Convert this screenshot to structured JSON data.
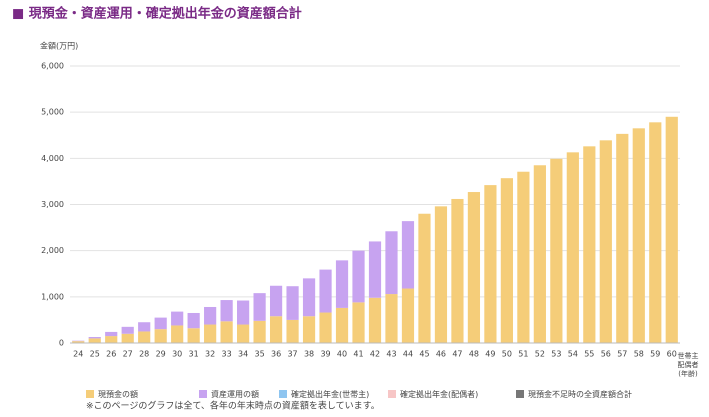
{
  "chart_data": {
    "type": "bar",
    "stacked": true,
    "title": "■ 現預金・資産運用・確定拠出年金の資産額合計",
    "ylabel": "金額(万円)",
    "xlabel": [
      "世帯主",
      "配偶者",
      "(年齢)"
    ],
    "footnote": "※このページのグラフは全て、各年の年末時点の資産額を表しています。",
    "categories": [
      "24",
      "25",
      "26",
      "27",
      "28",
      "29",
      "30",
      "31",
      "32",
      "33",
      "34",
      "35",
      "36",
      "37",
      "38",
      "39",
      "40",
      "41",
      "42",
      "43",
      "44",
      "45",
      "46",
      "47",
      "48",
      "49",
      "50",
      "51",
      "52",
      "53",
      "54",
      "55",
      "56",
      "57",
      "58",
      "59",
      "60"
    ],
    "series": [
      {
        "name": "現預金の額",
        "color": "#f5cd79",
        "values": [
          40,
          100,
          150,
          200,
          250,
          300,
          380,
          320,
          400,
          470,
          400,
          480,
          580,
          500,
          580,
          660,
          760,
          880,
          980,
          1060,
          1180,
          2800,
          2960,
          3120,
          3270,
          3420,
          3570,
          3710,
          3850,
          3990,
          4130,
          4260,
          4390,
          4530,
          4650,
          4780,
          4900
        ]
      },
      {
        "name": "資産運用の額",
        "color": "#c7a3f0",
        "values": [
          10,
          30,
          90,
          150,
          200,
          250,
          300,
          330,
          380,
          460,
          520,
          600,
          660,
          730,
          820,
          930,
          1030,
          1120,
          1220,
          1360,
          1460,
          0,
          0,
          0,
          0,
          0,
          0,
          0,
          0,
          0,
          0,
          0,
          0,
          0,
          0,
          0,
          0
        ]
      },
      {
        "name": "確定拠出年金(世帯主)",
        "color": "#8ec5f0",
        "values": [
          0,
          0,
          0,
          0,
          0,
          0,
          0,
          0,
          0,
          0,
          0,
          0,
          0,
          0,
          0,
          0,
          0,
          0,
          0,
          0,
          0,
          0,
          0,
          0,
          0,
          0,
          0,
          0,
          0,
          0,
          0,
          0,
          0,
          0,
          0,
          0,
          0
        ]
      },
      {
        "name": "確定拠出年金(配偶者)",
        "color": "#f7c6c6",
        "values": [
          0,
          0,
          0,
          0,
          0,
          0,
          0,
          0,
          0,
          0,
          0,
          0,
          0,
          0,
          0,
          0,
          0,
          0,
          0,
          0,
          0,
          0,
          0,
          0,
          0,
          0,
          0,
          0,
          0,
          0,
          0,
          0,
          0,
          0,
          0,
          0,
          0
        ]
      },
      {
        "name": "現預金不足時の全資産額合計",
        "color": "#777777",
        "values": [
          0,
          0,
          0,
          0,
          0,
          0,
          0,
          0,
          0,
          0,
          0,
          0,
          0,
          0,
          0,
          0,
          0,
          0,
          0,
          0,
          0,
          0,
          0,
          0,
          0,
          0,
          0,
          0,
          0,
          0,
          0,
          0,
          0,
          0,
          0,
          0,
          0
        ]
      }
    ],
    "ylim": [
      0,
      6000
    ],
    "yticks": [
      0,
      {
        "value": 1000,
        "label": "1,000"
      },
      {
        "value": 2000,
        "label": "2,000"
      },
      {
        "value": 3000,
        "label": "3,000"
      },
      {
        "value": 4000,
        "label": "4,000"
      },
      {
        "value": 5000,
        "label": "5,000"
      },
      {
        "value": 6000,
        "label": "6,000"
      }
    ],
    "grid": true
  }
}
